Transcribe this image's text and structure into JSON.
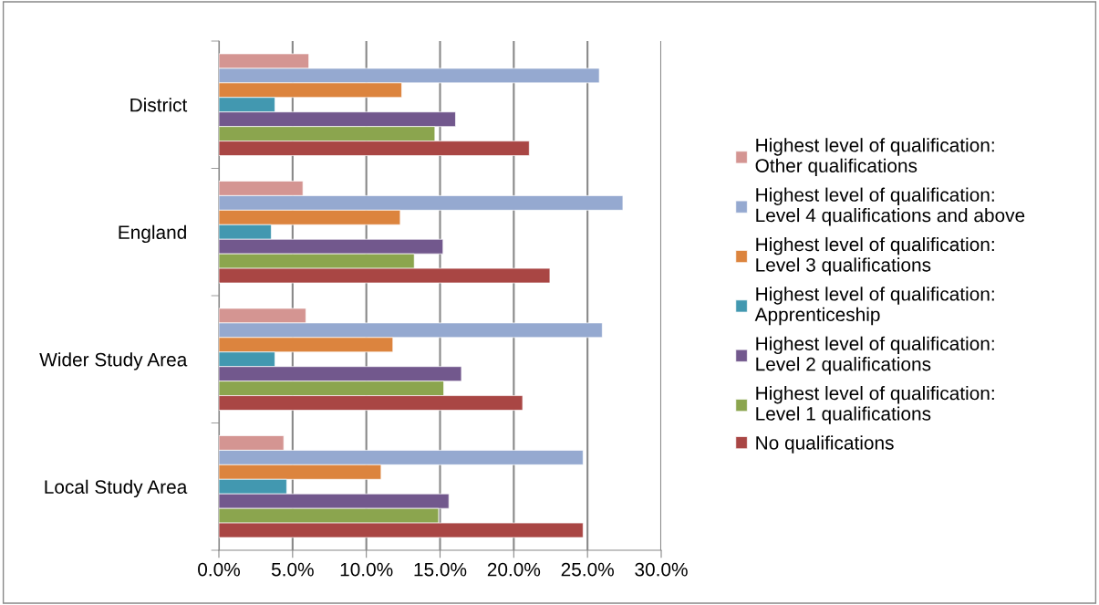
{
  "chart_data": {
    "type": "bar",
    "orientation": "horizontal",
    "categories": [
      "District",
      "England",
      "Wider Study Area",
      "Local Study Area"
    ],
    "series": [
      {
        "name": "Highest level of qualification:\nOther qualifications",
        "color": "#d49592",
        "values": [
          6.1,
          5.7,
          5.9,
          4.4
        ]
      },
      {
        "name": "Highest level of qualification:\nLevel 4 qualifications and above",
        "color": "#95a9d0",
        "values": [
          25.8,
          27.4,
          26.0,
          24.7
        ]
      },
      {
        "name": "Highest level of qualification:\nLevel 3 qualifications",
        "color": "#dc843e",
        "values": [
          12.4,
          12.3,
          11.8,
          11.0
        ]
      },
      {
        "name": "Highest level of qualification:\nApprenticeship",
        "color": "#4298b0",
        "values": [
          3.8,
          3.55,
          3.8,
          4.6
        ]
      },
      {
        "name": "Highest level of qualification:\nLevel 2 qualifications",
        "color": "#72588d",
        "values": [
          16.05,
          15.2,
          16.45,
          15.6
        ]
      },
      {
        "name": "Highest level of qualification:\nLevel 1 qualifications",
        "color": "#8ba54e",
        "values": [
          14.65,
          13.25,
          15.25,
          14.9
        ]
      },
      {
        "name": "No qualifications",
        "color": "#a94644",
        "values": [
          21.05,
          22.45,
          20.6,
          24.7
        ]
      }
    ],
    "xlim": [
      0,
      30
    ],
    "xticks": [
      {
        "value": 0,
        "label": "0.0%"
      },
      {
        "value": 5,
        "label": "5.0%"
      },
      {
        "value": 10,
        "label": "10.0%"
      },
      {
        "value": 15,
        "label": "15.0%"
      },
      {
        "value": 20,
        "label": "20.0%"
      },
      {
        "value": 25,
        "label": "25.0%"
      },
      {
        "value": 30,
        "label": "30.0%"
      }
    ],
    "grid": "x",
    "legend": "right"
  }
}
